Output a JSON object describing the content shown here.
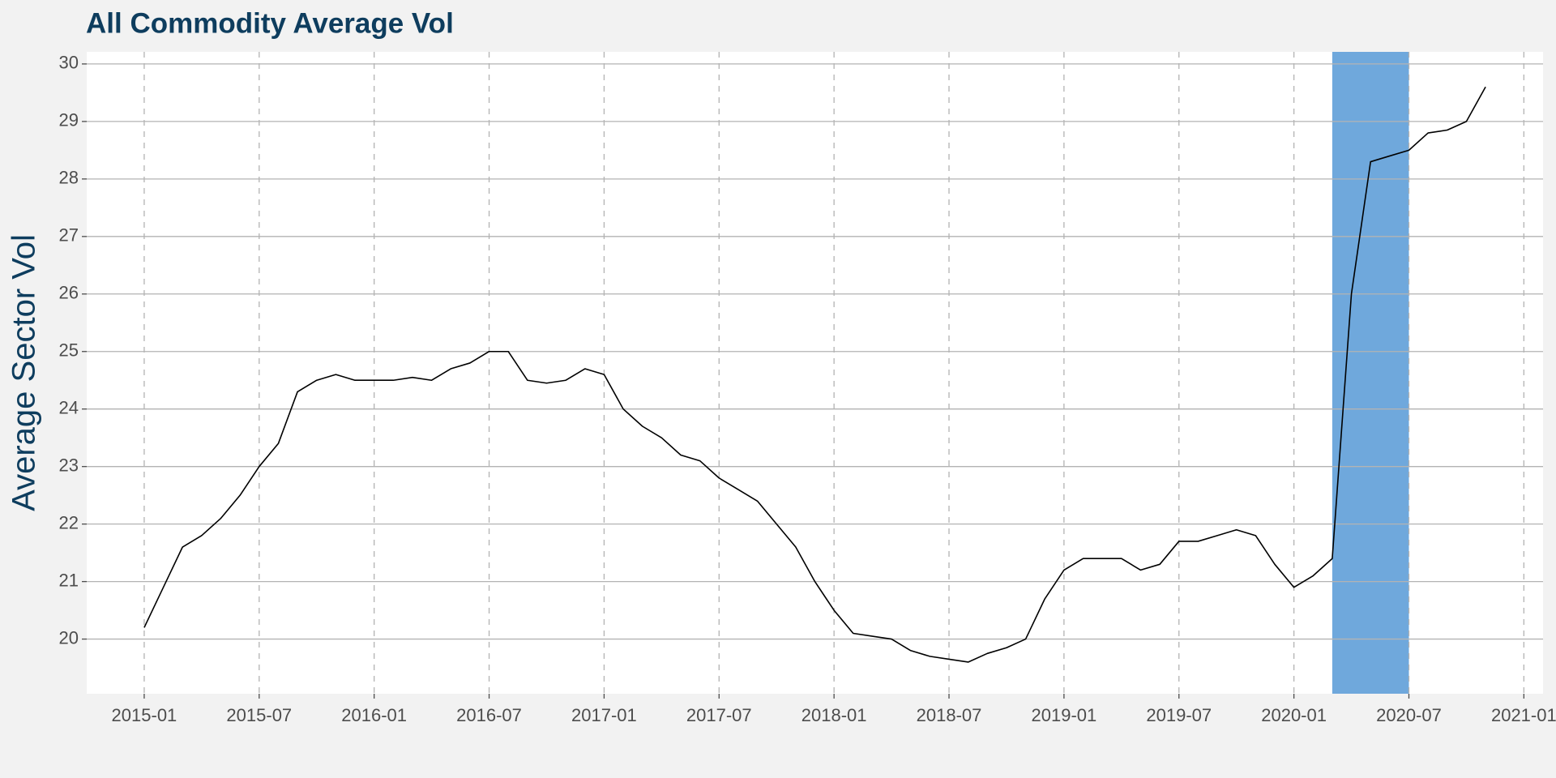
{
  "chart_data": {
    "type": "line",
    "title": "All Commodity Average Vol",
    "y_label": "Average Sector Vol",
    "x": [
      "2015-01",
      "2015-02",
      "2015-03",
      "2015-04",
      "2015-05",
      "2015-06",
      "2015-07",
      "2015-08",
      "2015-09",
      "2015-10",
      "2015-11",
      "2015-12",
      "2016-01",
      "2016-02",
      "2016-03",
      "2016-04",
      "2016-05",
      "2016-06",
      "2016-07",
      "2016-08",
      "2016-09",
      "2016-10",
      "2016-11",
      "2016-12",
      "2017-01",
      "2017-02",
      "2017-03",
      "2017-04",
      "2017-05",
      "2017-06",
      "2017-07",
      "2017-08",
      "2017-09",
      "2017-10",
      "2017-11",
      "2017-12",
      "2018-01",
      "2018-02",
      "2018-03",
      "2018-04",
      "2018-05",
      "2018-06",
      "2018-07",
      "2018-08",
      "2018-09",
      "2018-10",
      "2018-11",
      "2018-12",
      "2019-01",
      "2019-02",
      "2019-03",
      "2019-04",
      "2019-05",
      "2019-06",
      "2019-07",
      "2019-08",
      "2019-09",
      "2019-10",
      "2019-11",
      "2019-12",
      "2020-01",
      "2020-02",
      "2020-03",
      "2020-04",
      "2020-05",
      "2020-06",
      "2020-07",
      "2020-08",
      "2020-09",
      "2020-10",
      "2020-11"
    ],
    "values": [
      20.2,
      20.9,
      21.6,
      21.8,
      22.1,
      22.5,
      23.0,
      23.4,
      24.3,
      24.5,
      24.6,
      24.5,
      24.5,
      24.5,
      24.55,
      24.5,
      24.7,
      24.8,
      25.0,
      25.0,
      24.5,
      24.45,
      24.5,
      24.7,
      24.6,
      24.0,
      23.7,
      23.5,
      23.2,
      23.1,
      22.8,
      22.6,
      22.4,
      22.0,
      21.6,
      21.0,
      20.5,
      20.1,
      20.05,
      20.0,
      19.8,
      19.7,
      19.65,
      19.6,
      19.75,
      19.85,
      20.0,
      20.7,
      21.2,
      21.4,
      21.4,
      21.4,
      21.2,
      21.3,
      21.7,
      21.7,
      21.8,
      21.9,
      21.8,
      21.3,
      20.9,
      21.1,
      21.4,
      26.0,
      28.3,
      28.4,
      28.5,
      28.8,
      28.85,
      29.0,
      29.6
    ],
    "color": "#000000",
    "highlight": {
      "from": "2020-03",
      "to": "2020-07",
      "color": "#6fa8dc"
    },
    "xlim": [
      "2014-10",
      "2021-02"
    ],
    "xticks": [
      "2015-01",
      "2015-07",
      "2016-01",
      "2016-07",
      "2017-01",
      "2017-07",
      "2018-01",
      "2018-07",
      "2019-01",
      "2019-07",
      "2020-01",
      "2020-07",
      "2021-01"
    ],
    "ylim": [
      19.05,
      30.21
    ],
    "yticks": [
      20,
      21,
      22,
      23,
      24,
      25,
      26,
      27,
      28,
      29,
      30
    ],
    "grid": true
  }
}
